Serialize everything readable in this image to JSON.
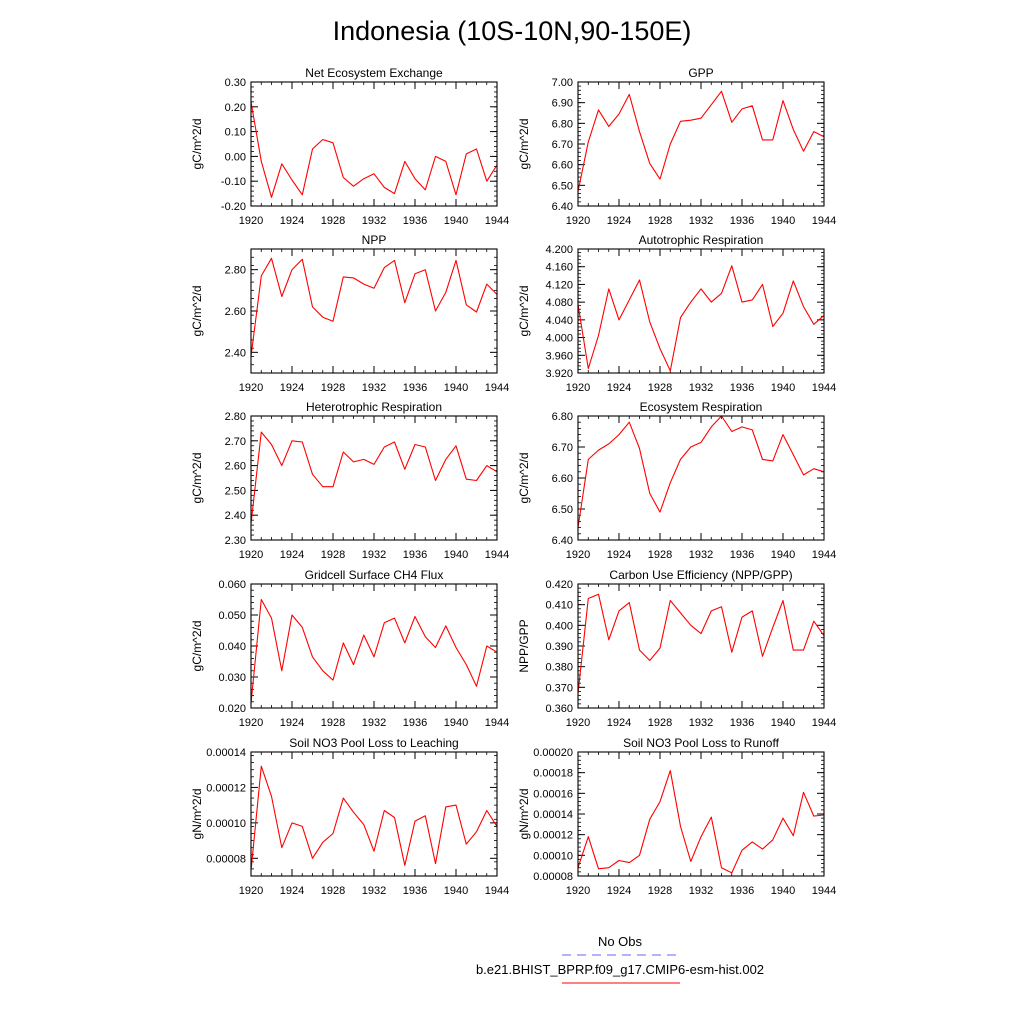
{
  "page": {
    "title": "Indonesia (10S-10N,90-150E)"
  },
  "legend": {
    "entries": [
      {
        "label": "No Obs",
        "color": "#6666ff",
        "dashed": true
      },
      {
        "label": "b.e21.BHIST_BPRP.f09_g17.CMIP6-esm-hist.002",
        "color": "#ff0000",
        "dashed": false
      }
    ]
  },
  "chart_data": [
    {
      "type": "line",
      "title": "Net Ecosystem Exchange",
      "ylabel": "gC/m^2/d",
      "xlabel": "",
      "xlim": [
        1920,
        1944
      ],
      "ylim": [
        -0.2,
        0.3
      ],
      "yticks": [
        -0.2,
        -0.1,
        0.0,
        0.1,
        0.2,
        0.3
      ],
      "ytick_labels": [
        "-0.20",
        "-0.10",
        "0.00",
        "0.10",
        "0.20",
        "0.30"
      ],
      "xticks": [
        1920,
        1924,
        1928,
        1932,
        1936,
        1940,
        1944
      ],
      "xtick_labels": [
        "1920",
        "1924",
        "1928",
        "1932",
        "1936",
        "1940",
        "1944"
      ],
      "series": [
        {
          "color": "#ff0000",
          "x": [
            1920,
            1921,
            1922,
            1923,
            1924,
            1925,
            1926,
            1927,
            1928,
            1929,
            1930,
            1931,
            1932,
            1933,
            1934,
            1935,
            1936,
            1937,
            1938,
            1939,
            1940,
            1941,
            1942,
            1943,
            1944
          ],
          "y": [
            0.22,
            -0.02,
            -0.165,
            -0.03,
            -0.095,
            -0.155,
            0.03,
            0.068,
            0.055,
            -0.085,
            -0.12,
            -0.09,
            -0.07,
            -0.125,
            -0.15,
            -0.02,
            -0.09,
            -0.135,
            0.0,
            -0.02,
            -0.155,
            0.01,
            0.03,
            -0.1,
            -0.035
          ]
        }
      ]
    },
    {
      "type": "line",
      "title": "GPP",
      "ylabel": "gC/m^2/d",
      "xlabel": "",
      "xlim": [
        1920,
        1944
      ],
      "ylim": [
        6.4,
        7.0
      ],
      "yticks": [
        6.4,
        6.5,
        6.6,
        6.7,
        6.8,
        6.9,
        7.0
      ],
      "ytick_labels": [
        "6.40",
        "6.50",
        "6.60",
        "6.70",
        "6.80",
        "6.90",
        "7.00"
      ],
      "xticks": [
        1920,
        1924,
        1928,
        1932,
        1936,
        1940,
        1944
      ],
      "xtick_labels": [
        "1920",
        "1924",
        "1928",
        "1932",
        "1936",
        "1940",
        "1944"
      ],
      "series": [
        {
          "color": "#ff0000",
          "x": [
            1920,
            1921,
            1922,
            1923,
            1924,
            1925,
            1926,
            1927,
            1928,
            1929,
            1930,
            1931,
            1932,
            1933,
            1934,
            1935,
            1936,
            1937,
            1938,
            1939,
            1940,
            1941,
            1942,
            1943,
            1944
          ],
          "y": [
            6.47,
            6.71,
            6.865,
            6.785,
            6.845,
            6.94,
            6.76,
            6.605,
            6.53,
            6.7,
            6.81,
            6.815,
            6.825,
            6.89,
            6.955,
            6.805,
            6.87,
            6.885,
            6.72,
            6.72,
            6.91,
            6.77,
            6.665,
            6.76,
            6.735
          ]
        }
      ]
    },
    {
      "type": "line",
      "title": "NPP",
      "ylabel": "gC/m^2/d",
      "xlabel": "",
      "xlim": [
        1920,
        1944
      ],
      "ylim": [
        2.3,
        2.9
      ],
      "yticks": [
        2.4,
        2.6,
        2.8
      ],
      "ytick_labels": [
        "2.40",
        "2.60",
        "2.80"
      ],
      "xticks": [
        1920,
        1924,
        1928,
        1932,
        1936,
        1940,
        1944
      ],
      "xtick_labels": [
        "1920",
        "1924",
        "1928",
        "1932",
        "1936",
        "1940",
        "1944"
      ],
      "series": [
        {
          "color": "#ff0000",
          "x": [
            1920,
            1921,
            1922,
            1923,
            1924,
            1925,
            1926,
            1927,
            1928,
            1929,
            1930,
            1931,
            1932,
            1933,
            1934,
            1935,
            1936,
            1937,
            1938,
            1939,
            1940,
            1941,
            1942,
            1943,
            1944
          ],
          "y": [
            2.38,
            2.77,
            2.855,
            2.67,
            2.8,
            2.85,
            2.62,
            2.57,
            2.55,
            2.765,
            2.76,
            2.73,
            2.71,
            2.81,
            2.845,
            2.64,
            2.78,
            2.8,
            2.6,
            2.69,
            2.845,
            2.63,
            2.595,
            2.73,
            2.68
          ]
        }
      ]
    },
    {
      "type": "line",
      "title": "Autotrophic Respiration",
      "ylabel": "gC/m^2/d",
      "xlabel": "",
      "xlim": [
        1920,
        1944
      ],
      "ylim": [
        3.92,
        4.2
      ],
      "yticks": [
        3.92,
        3.96,
        4.0,
        4.04,
        4.08,
        4.12,
        4.16,
        4.2
      ],
      "ytick_labels": [
        "3.920",
        "3.960",
        "4.000",
        "4.040",
        "4.080",
        "4.120",
        "4.160",
        "4.200"
      ],
      "xticks": [
        1920,
        1924,
        1928,
        1932,
        1936,
        1940,
        1944
      ],
      "xtick_labels": [
        "1920",
        "1924",
        "1928",
        "1932",
        "1936",
        "1940",
        "1944"
      ],
      "series": [
        {
          "color": "#ff0000",
          "x": [
            1920,
            1921,
            1922,
            1923,
            1924,
            1925,
            1926,
            1927,
            1928,
            1929,
            1930,
            1931,
            1932,
            1933,
            1934,
            1935,
            1936,
            1937,
            1938,
            1939,
            1940,
            1941,
            1942,
            1943,
            1944
          ],
          "y": [
            4.075,
            3.93,
            4.005,
            4.11,
            4.04,
            4.085,
            4.13,
            4.035,
            3.975,
            3.925,
            4.045,
            4.08,
            4.11,
            4.08,
            4.1,
            4.162,
            4.08,
            4.085,
            4.12,
            4.025,
            4.055,
            4.128,
            4.07,
            4.03,
            4.05
          ]
        }
      ]
    },
    {
      "type": "line",
      "title": "Heterotrophic Respiration",
      "ylabel": "gC/m^2/d",
      "xlabel": "",
      "xlim": [
        1920,
        1944
      ],
      "ylim": [
        2.3,
        2.8
      ],
      "yticks": [
        2.3,
        2.4,
        2.5,
        2.6,
        2.7,
        2.8
      ],
      "ytick_labels": [
        "2.30",
        "2.40",
        "2.50",
        "2.60",
        "2.70",
        "2.80"
      ],
      "xticks": [
        1920,
        1924,
        1928,
        1932,
        1936,
        1940,
        1944
      ],
      "xtick_labels": [
        "1920",
        "1924",
        "1928",
        "1932",
        "1936",
        "1940",
        "1944"
      ],
      "series": [
        {
          "color": "#ff0000",
          "x": [
            1920,
            1921,
            1922,
            1923,
            1924,
            1925,
            1926,
            1927,
            1928,
            1929,
            1930,
            1931,
            1932,
            1933,
            1934,
            1935,
            1936,
            1937,
            1938,
            1939,
            1940,
            1941,
            1942,
            1943,
            1944
          ],
          "y": [
            2.365,
            2.735,
            2.685,
            2.6,
            2.7,
            2.695,
            2.565,
            2.515,
            2.515,
            2.655,
            2.615,
            2.625,
            2.605,
            2.675,
            2.695,
            2.585,
            2.685,
            2.675,
            2.54,
            2.625,
            2.68,
            2.545,
            2.54,
            2.6,
            2.575
          ]
        }
      ]
    },
    {
      "type": "line",
      "title": "Ecosystem Respiration",
      "ylabel": "gC/m^2/d",
      "xlabel": "",
      "xlim": [
        1920,
        1944
      ],
      "ylim": [
        6.4,
        6.8
      ],
      "yticks": [
        6.4,
        6.5,
        6.6,
        6.7,
        6.8
      ],
      "ytick_labels": [
        "6.40",
        "6.50",
        "6.60",
        "6.70",
        "6.80"
      ],
      "xticks": [
        1920,
        1924,
        1928,
        1932,
        1936,
        1940,
        1944
      ],
      "xtick_labels": [
        "1920",
        "1924",
        "1928",
        "1932",
        "1936",
        "1940",
        "1944"
      ],
      "series": [
        {
          "color": "#ff0000",
          "x": [
            1920,
            1921,
            1922,
            1923,
            1924,
            1925,
            1926,
            1927,
            1928,
            1929,
            1930,
            1931,
            1932,
            1933,
            1934,
            1935,
            1936,
            1937,
            1938,
            1939,
            1940,
            1941,
            1942,
            1943,
            1944
          ],
          "y": [
            6.44,
            6.66,
            6.69,
            6.71,
            6.74,
            6.78,
            6.695,
            6.55,
            6.49,
            6.585,
            6.66,
            6.7,
            6.715,
            6.765,
            6.8,
            6.75,
            6.765,
            6.755,
            6.66,
            6.655,
            6.74,
            6.675,
            6.61,
            6.63,
            6.62
          ]
        }
      ]
    },
    {
      "type": "line",
      "title": "Gridcell Surface CH4 Flux",
      "ylabel": "gC/m^2/d",
      "xlabel": "",
      "xlim": [
        1920,
        1944
      ],
      "ylim": [
        0.02,
        0.06
      ],
      "yticks": [
        0.02,
        0.03,
        0.04,
        0.05,
        0.06
      ],
      "ytick_labels": [
        "0.020",
        "0.030",
        "0.040",
        "0.050",
        "0.060"
      ],
      "xticks": [
        1920,
        1924,
        1928,
        1932,
        1936,
        1940,
        1944
      ],
      "xtick_labels": [
        "1920",
        "1924",
        "1928",
        "1932",
        "1936",
        "1940",
        "1944"
      ],
      "series": [
        {
          "color": "#ff0000",
          "x": [
            1920,
            1921,
            1922,
            1923,
            1924,
            1925,
            1926,
            1927,
            1928,
            1929,
            1930,
            1931,
            1932,
            1933,
            1934,
            1935,
            1936,
            1937,
            1938,
            1939,
            1940,
            1941,
            1942,
            1943,
            1944
          ],
          "y": [
            0.0215,
            0.055,
            0.049,
            0.032,
            0.05,
            0.046,
            0.0365,
            0.032,
            0.029,
            0.041,
            0.034,
            0.0435,
            0.0365,
            0.0475,
            0.049,
            0.041,
            0.0495,
            0.043,
            0.0395,
            0.0465,
            0.0395,
            0.034,
            0.027,
            0.04,
            0.038
          ]
        }
      ]
    },
    {
      "type": "line",
      "title": "Carbon Use Efficiency (NPP/GPP)",
      "ylabel": "NPP/GPP",
      "xlabel": "",
      "xlim": [
        1920,
        1944
      ],
      "ylim": [
        0.36,
        0.42
      ],
      "yticks": [
        0.36,
        0.37,
        0.38,
        0.39,
        0.4,
        0.41,
        0.42
      ],
      "ytick_labels": [
        "0.360",
        "0.370",
        "0.380",
        "0.390",
        "0.400",
        "0.410",
        "0.420"
      ],
      "xticks": [
        1920,
        1924,
        1928,
        1932,
        1936,
        1940,
        1944
      ],
      "xtick_labels": [
        "1920",
        "1924",
        "1928",
        "1932",
        "1936",
        "1940",
        "1944"
      ],
      "series": [
        {
          "color": "#ff0000",
          "x": [
            1920,
            1921,
            1922,
            1923,
            1924,
            1925,
            1926,
            1927,
            1928,
            1929,
            1930,
            1931,
            1932,
            1933,
            1934,
            1935,
            1936,
            1937,
            1938,
            1939,
            1940,
            1941,
            1942,
            1943,
            1944
          ],
          "y": [
            0.367,
            0.413,
            0.415,
            0.393,
            0.407,
            0.411,
            0.388,
            0.383,
            0.389,
            0.412,
            0.406,
            0.4,
            0.396,
            0.407,
            0.409,
            0.387,
            0.404,
            0.407,
            0.385,
            0.399,
            0.412,
            0.388,
            0.388,
            0.402,
            0.395
          ]
        }
      ]
    },
    {
      "type": "line",
      "title": "Soil NO3 Pool Loss to Leaching",
      "ylabel": "gN/m^2/d",
      "xlabel": "",
      "xlim": [
        1920,
        1944
      ],
      "ylim": [
        7e-05,
        0.00014
      ],
      "yticks": [
        8e-05,
        0.0001,
        0.00012,
        0.00014
      ],
      "ytick_labels": [
        "0.00008",
        "0.00010",
        "0.00012",
        "0.00014"
      ],
      "xticks": [
        1920,
        1924,
        1928,
        1932,
        1936,
        1940,
        1944
      ],
      "xtick_labels": [
        "1920",
        "1924",
        "1928",
        "1932",
        "1936",
        "1940",
        "1944"
      ],
      "series": [
        {
          "color": "#ff0000",
          "x": [
            1920,
            1921,
            1922,
            1923,
            1924,
            1925,
            1926,
            1927,
            1928,
            1929,
            1930,
            1931,
            1932,
            1933,
            1934,
            1935,
            1936,
            1937,
            1938,
            1939,
            1940,
            1941,
            1942,
            1943,
            1944
          ],
          "y": [
            7.3e-05,
            0.000132,
            0.000115,
            8.6e-05,
            0.0001,
            9.8e-05,
            8e-05,
            8.9e-05,
            9.4e-05,
            0.000114,
            0.000106,
            9.9e-05,
            8.4e-05,
            0.000107,
            0.000103,
            7.6e-05,
            0.000101,
            0.000104,
            7.7e-05,
            0.000109,
            0.00011,
            8.8e-05,
            9.5e-05,
            0.000107,
            9.8e-05
          ]
        }
      ]
    },
    {
      "type": "line",
      "title": "Soil NO3 Pool Loss to Runoff",
      "ylabel": "gN/m^2/d",
      "xlabel": "",
      "xlim": [
        1920,
        1944
      ],
      "ylim": [
        8e-05,
        0.0002
      ],
      "yticks": [
        8e-05,
        0.0001,
        0.00012,
        0.00014,
        0.00016,
        0.00018,
        0.0002
      ],
      "ytick_labels": [
        "0.00008",
        "0.00010",
        "0.00012",
        "0.00014",
        "0.00016",
        "0.00018",
        "0.00020"
      ],
      "xticks": [
        1920,
        1924,
        1928,
        1932,
        1936,
        1940,
        1944
      ],
      "xtick_labels": [
        "1920",
        "1924",
        "1928",
        "1932",
        "1936",
        "1940",
        "1944"
      ],
      "series": [
        {
          "color": "#ff0000",
          "x": [
            1920,
            1921,
            1922,
            1923,
            1924,
            1925,
            1926,
            1927,
            1928,
            1929,
            1930,
            1931,
            1932,
            1933,
            1934,
            1935,
            1936,
            1937,
            1938,
            1939,
            1940,
            1941,
            1942,
            1943,
            1944
          ],
          "y": [
            8.8e-05,
            0.000118,
            8.7e-05,
            8.8e-05,
            9.5e-05,
            9.3e-05,
            0.0001,
            0.000135,
            0.000152,
            0.000182,
            0.000128,
            9.4e-05,
            0.000118,
            0.000137,
            8.8e-05,
            8.3e-05,
            0.000105,
            0.000113,
            0.000106,
            0.000115,
            0.000136,
            0.000119,
            0.000161,
            0.000138,
            0.000139
          ]
        }
      ]
    }
  ]
}
